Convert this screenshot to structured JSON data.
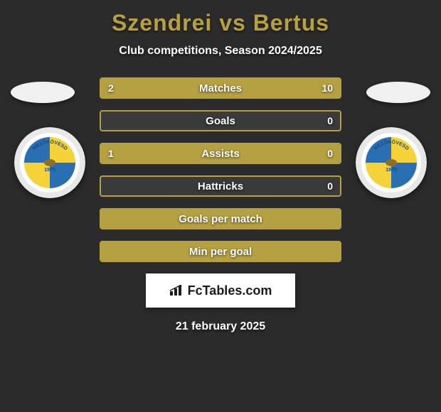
{
  "title_left": "Szendrei",
  "title_vs": "vs",
  "title_right": "Bertus",
  "subtitle": "Club competitions, Season 2024/2025",
  "stats": [
    {
      "label": "Matches",
      "left_value": "2",
      "right_value": "10",
      "left_fill_pct": 17,
      "right_fill_pct": 83,
      "show_values": true,
      "full_fill": false
    },
    {
      "label": "Goals",
      "left_value": "",
      "right_value": "0",
      "left_fill_pct": 0,
      "right_fill_pct": 0,
      "show_values": true,
      "full_fill": false
    },
    {
      "label": "Assists",
      "left_value": "1",
      "right_value": "0",
      "left_fill_pct": 100,
      "right_fill_pct": 0,
      "show_values": true,
      "full_fill": false
    },
    {
      "label": "Hattricks",
      "left_value": "",
      "right_value": "0",
      "left_fill_pct": 0,
      "right_fill_pct": 0,
      "show_values": true,
      "full_fill": false
    },
    {
      "label": "Goals per match",
      "left_value": "",
      "right_value": "",
      "left_fill_pct": 0,
      "right_fill_pct": 0,
      "show_values": false,
      "full_fill": true
    },
    {
      "label": "Min per goal",
      "left_value": "",
      "right_value": "",
      "left_fill_pct": 0,
      "right_fill_pct": 0,
      "show_values": false,
      "full_fill": true
    }
  ],
  "brand_text": "FcTables.com",
  "footer_date": "21 february 2025",
  "colors": {
    "background": "#2b2b2b",
    "accent": "#b5a042",
    "bar_bg": "#3a3a3a",
    "text_white": "#ffffff",
    "avatar_bg": "#f0f0f0",
    "brand_bg": "#ffffff",
    "brand_text": "#1a1a1a",
    "club_blue": "#2b6fb3",
    "club_yellow": "#f5d23a",
    "club_ring": "#e8e8e8"
  },
  "club_badge_text": "MEZŐKÖVESD",
  "club_badge_year": "1975"
}
